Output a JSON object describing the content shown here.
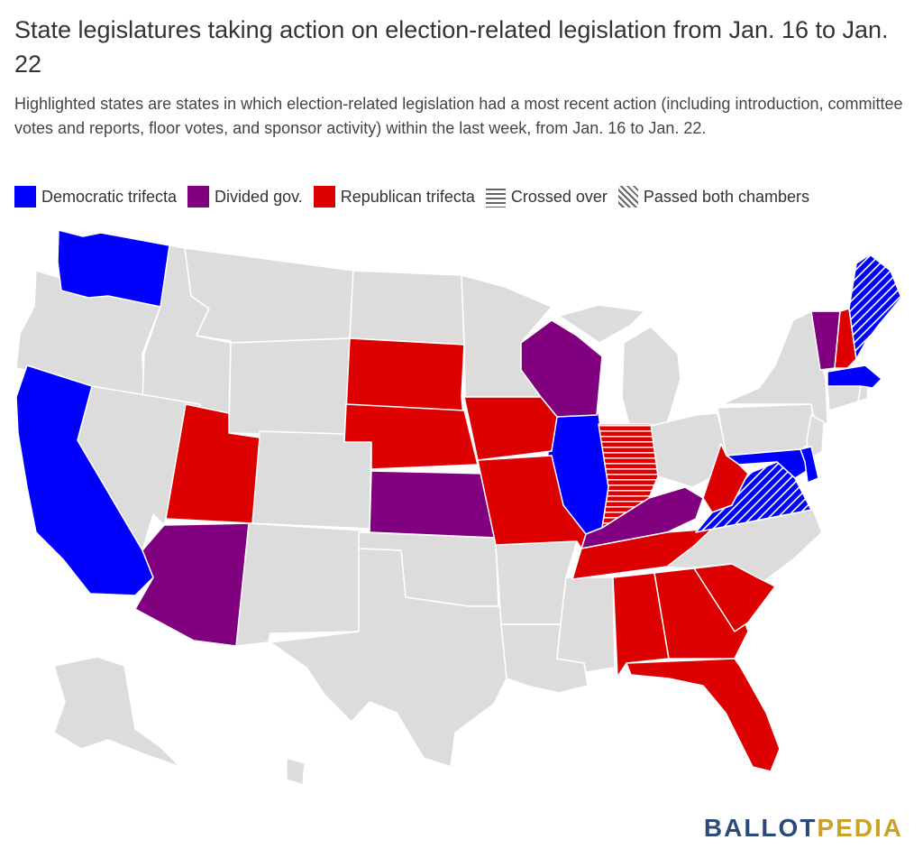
{
  "title": "State legislatures taking action on election-related legislation from Jan. 16 to Jan. 22",
  "subtitle": "Highlighted states are states in which election-related legislation had a most recent action (including introduction, committee votes and reports, floor votes, and sponsor activity) within the last week, from Jan. 16  to  Jan. 22.",
  "legend": [
    {
      "label": "Democratic trifecta",
      "type": "solid",
      "color": "#0000ff"
    },
    {
      "label": "Divided gov.",
      "type": "solid",
      "color": "#800080"
    },
    {
      "label": "Republican trifecta",
      "type": "solid",
      "color": "#dd0000"
    },
    {
      "label": "Crossed over",
      "type": "hstripe",
      "color": "#666666"
    },
    {
      "label": "Passed both chambers",
      "type": "dstripe",
      "color": "#666666"
    }
  ],
  "colors": {
    "democratic": "#0000ff",
    "divided": "#800080",
    "republican": "#dd0000",
    "other": "#dcdcdc",
    "border": "#ffffff"
  },
  "states": {
    "democratic": [
      "WA",
      "CA",
      "IL",
      "MD",
      "MA",
      "DE"
    ],
    "democratic_passed_both": [
      "ME",
      "VA"
    ],
    "divided": [
      "AZ",
      "KS",
      "WI",
      "KY",
      "VT"
    ],
    "republican": [
      "UT",
      "SD",
      "NE",
      "IA",
      "MO",
      "TN",
      "AL",
      "GA",
      "SC",
      "FL",
      "WV",
      "NH"
    ],
    "republican_crossed_over": [
      "IN"
    ]
  },
  "logo": {
    "part1": "BALLOT",
    "part2": "PEDIA"
  }
}
